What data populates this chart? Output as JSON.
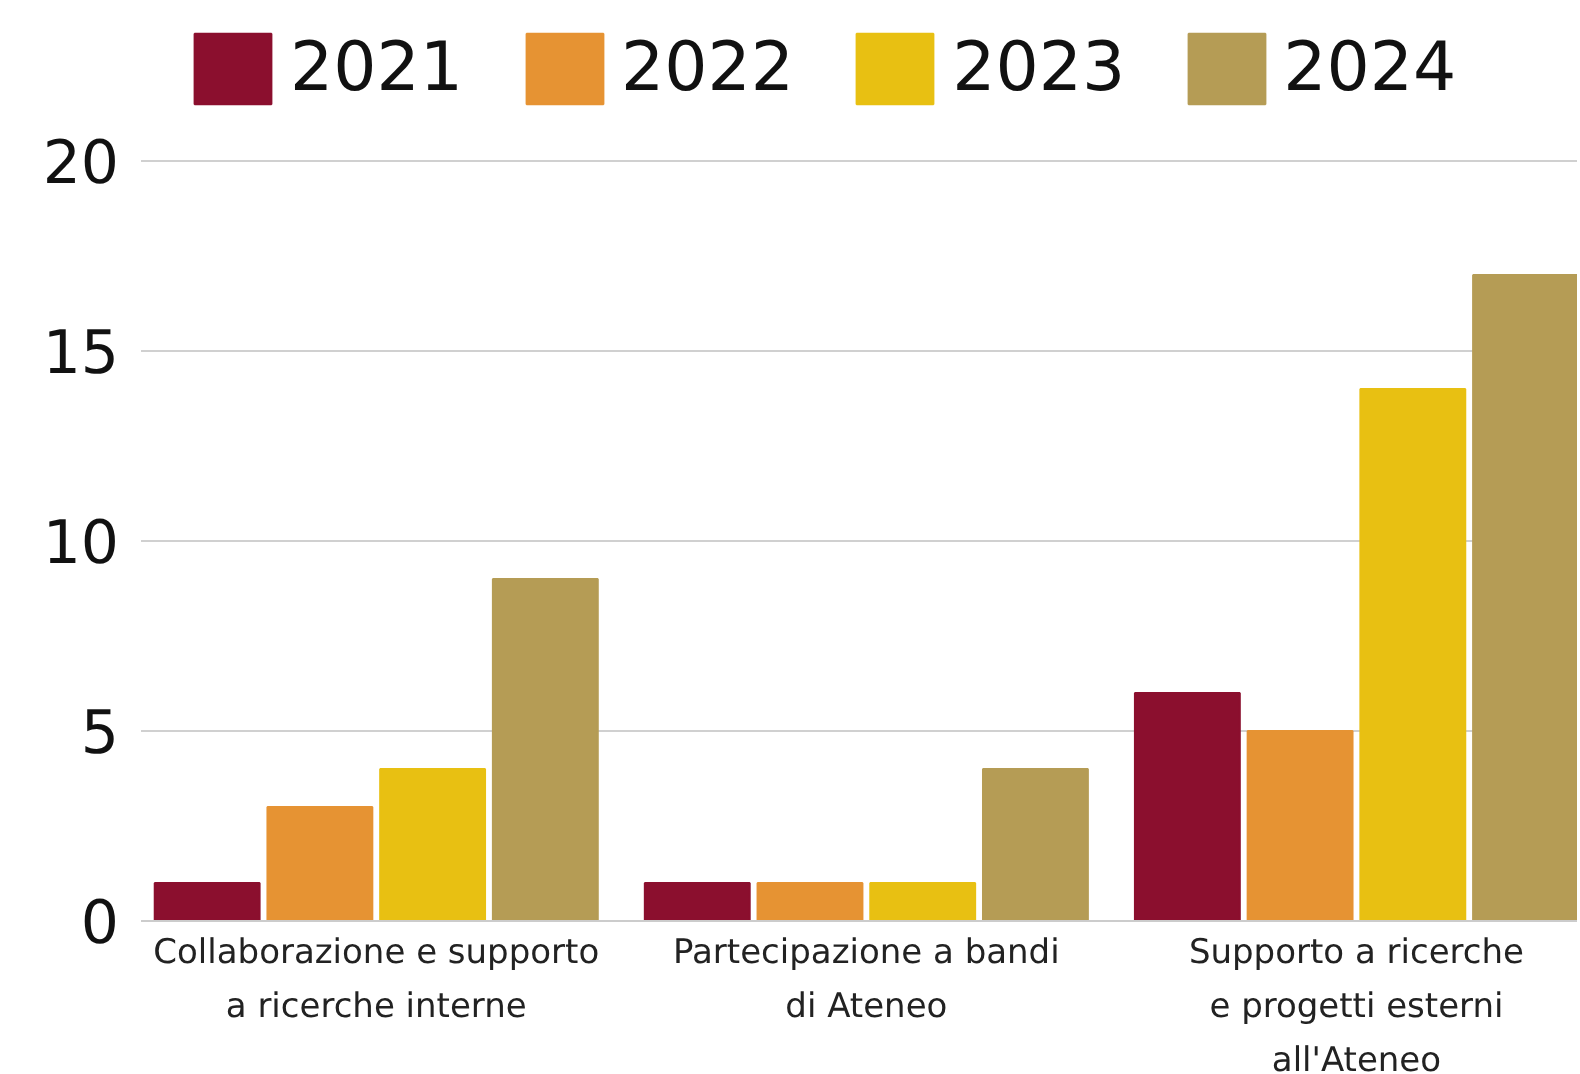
{
  "chart_data": {
    "type": "bar",
    "categories": [
      "Collaborazione e supporto\na ricerche interne",
      "Partecipazione a bandi\ndi Ateneo",
      "Supporto a ricerche\ne progetti esterni\nall'Ateneo"
    ],
    "series": [
      {
        "name": "2021",
        "color": "#8b0f2e",
        "values": [
          1,
          1,
          6
        ]
      },
      {
        "name": "2022",
        "color": "#e69333",
        "values": [
          3,
          1,
          5
        ]
      },
      {
        "name": "2023",
        "color": "#e8c012",
        "values": [
          4,
          1,
          14
        ]
      },
      {
        "name": "2024",
        "color": "#b59c55",
        "values": [
          9,
          4,
          17
        ]
      }
    ],
    "ylim": [
      0,
      20
    ],
    "yticks": [
      0,
      5,
      10,
      15,
      20
    ],
    "grid": "y",
    "legend": "top"
  }
}
